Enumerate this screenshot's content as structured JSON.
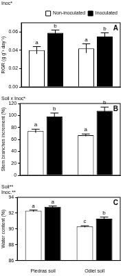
{
  "chart_data": [
    {
      "type": "bar",
      "panel": "A",
      "annotation": [
        "Inoc*"
      ],
      "y_label": "RGR (g g⁻¹ day⁻¹)",
      "categories": [
        "Piedras soil",
        "Odiel soil"
      ],
      "series": [
        {
          "name": "Non-inoculated",
          "color": "#ffffff",
          "values": [
            0.04,
            0.042
          ],
          "errors": [
            0.004,
            0.005
          ],
          "letters": [
            "a",
            "a"
          ]
        },
        {
          "name": "Inoculated",
          "color": "#000000",
          "values": [
            0.059,
            0.055
          ],
          "errors": [
            0.003,
            0.004
          ],
          "letters": [
            "b",
            "b"
          ]
        }
      ],
      "ylim": [
        0,
        0.07
      ],
      "yticks": [
        {
          "value": 0,
          "label": "0.00"
        },
        {
          "value": 0.02,
          "label": "0.02"
        },
        {
          "value": 0.04,
          "label": "0.04"
        },
        {
          "value": 0.06,
          "label": "0.06"
        }
      ],
      "grid": false,
      "legend": "top right",
      "tick_labels": "y"
    },
    {
      "type": "bar",
      "panel": "B",
      "annotation": [
        "Soil x Inoc*"
      ],
      "y_label": "Stem branches increment (%)",
      "categories": [
        "Piedras soil",
        "Odiel soil"
      ],
      "series": [
        {
          "name": "Non-inoculated",
          "color": "#ffffff",
          "values": [
            74,
            67
          ],
          "errors": [
            3,
            2
          ],
          "letters": [
            "a",
            "a"
          ]
        },
        {
          "name": "Inoculated",
          "color": "#000000",
          "values": [
            98,
            108
          ],
          "errors": [
            6,
            6
          ],
          "letters": [
            "b",
            "b"
          ]
        }
      ],
      "ylim": [
        0,
        120
      ],
      "yticks": [
        0,
        20,
        40,
        60,
        80,
        100,
        120
      ],
      "grid": false,
      "tick_labels": "y"
    },
    {
      "type": "bar",
      "panel": "C",
      "annotation": [
        "Soil**",
        "Inoc.**"
      ],
      "y_label": "Water content (%)",
      "categories": [
        "Piedras soil",
        "Odiel soil"
      ],
      "series": [
        {
          "name": "Non-inoculated",
          "color": "#ffffff",
          "values": [
            92.3,
            90.3
          ],
          "errors": [
            0.1,
            0.1
          ],
          "letters": [
            "a",
            "c"
          ]
        },
        {
          "name": "Inoculated",
          "color": "#000000",
          "values": [
            92.8,
            91.3
          ],
          "errors": [
            0.1,
            0.2
          ],
          "letters": [
            "a",
            "b"
          ]
        }
      ],
      "ylim": [
        86,
        94
      ],
      "yticks": [
        86,
        88,
        90,
        92,
        94
      ],
      "grid": false
    }
  ]
}
